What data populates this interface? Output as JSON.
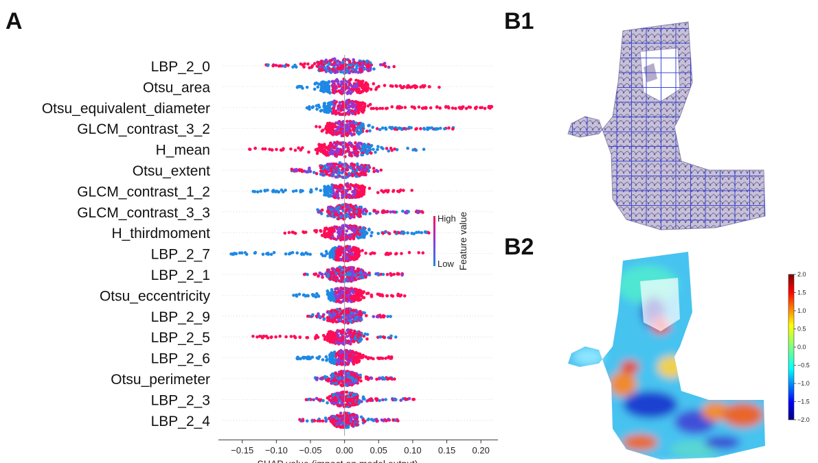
{
  "panels": {
    "a": "A",
    "b1": "B1",
    "b2": "B2"
  },
  "chart_data": [
    {
      "type": "scatter",
      "subtype": "shap-beeswarm",
      "xlabel": "SHAP value (impact on model output)",
      "xlim": [
        -0.185,
        0.225
      ],
      "xticks": [
        -0.15,
        -0.1,
        -0.05,
        0.0,
        0.05,
        0.1,
        0.15,
        0.2
      ],
      "xtick_labels": [
        "−0.15",
        "−0.10",
        "−0.05",
        "0.00",
        "0.05",
        "0.10",
        "0.15",
        "0.20"
      ],
      "grid": false,
      "zero_line": true,
      "colorbar": {
        "label": "Feature value",
        "high": "High",
        "low": "Low",
        "low_color": "#1e88e5",
        "high_color": "#ff0d57"
      },
      "features": [
        {
          "name": "LBP_2_0",
          "min": -0.115,
          "max": 0.073,
          "core": 0.04,
          "low_side": "mixed"
        },
        {
          "name": "Otsu_area",
          "min": -0.072,
          "max": 0.14,
          "core": 0.035,
          "low_side": "negative"
        },
        {
          "name": "Otsu_equivalent_diameter",
          "min": -0.062,
          "max": 0.218,
          "core": 0.03,
          "low_side": "negative"
        },
        {
          "name": "GLCM_contrast_3_2",
          "min": -0.045,
          "max": 0.16,
          "core": 0.028,
          "low_side": "positive"
        },
        {
          "name": "H_mean",
          "min": -0.142,
          "max": 0.117,
          "core": 0.04,
          "low_side": "positive"
        },
        {
          "name": "Otsu_extent",
          "min": -0.078,
          "max": 0.057,
          "core": 0.035,
          "low_side": "mixed"
        },
        {
          "name": "GLCM_contrast_1_2",
          "min": -0.138,
          "max": 0.102,
          "core": 0.03,
          "low_side": "negative"
        },
        {
          "name": "GLCM_contrast_3_3",
          "min": -0.042,
          "max": 0.116,
          "core": 0.025,
          "low_side": "mixed"
        },
        {
          "name": "H_thirdmoment",
          "min": -0.088,
          "max": 0.125,
          "core": 0.03,
          "low_side": "positive"
        },
        {
          "name": "LBP_2_7",
          "min": -0.168,
          "max": 0.125,
          "core": 0.022,
          "low_side": "negative"
        },
        {
          "name": "LBP_2_1",
          "min": -0.06,
          "max": 0.088,
          "core": 0.025,
          "low_side": "mixed"
        },
        {
          "name": "Otsu_eccentricity",
          "min": -0.078,
          "max": 0.09,
          "core": 0.025,
          "low_side": "negative"
        },
        {
          "name": "LBP_2_9",
          "min": -0.055,
          "max": 0.068,
          "core": 0.025,
          "low_side": "mixed"
        },
        {
          "name": "LBP_2_5",
          "min": -0.135,
          "max": 0.076,
          "core": 0.025,
          "low_side": "positive"
        },
        {
          "name": "LBP_2_6",
          "min": -0.072,
          "max": 0.07,
          "core": 0.022,
          "low_side": "negative"
        },
        {
          "name": "Otsu_perimeter",
          "min": -0.045,
          "max": 0.077,
          "core": 0.02,
          "low_side": "mixed"
        },
        {
          "name": "LBP_2_3",
          "min": -0.06,
          "max": 0.102,
          "core": 0.02,
          "low_side": "mixed"
        },
        {
          "name": "LBP_2_4",
          "min": -0.068,
          "max": 0.08,
          "core": 0.02,
          "low_side": "mixed"
        }
      ]
    },
    {
      "type": "heatmap",
      "subtype": "colorbar",
      "vlim": [
        -2.0,
        2.0
      ],
      "ticks": [
        2.0,
        1.5,
        1.0,
        0.5,
        0.0,
        -0.5,
        -1.0,
        -1.5,
        -2.0
      ],
      "tick_labels": [
        "2.0",
        "1.5",
        "1.0",
        "0.5",
        "0.0",
        "−0.5",
        "−1.0",
        "−1.5",
        "−2.0"
      ],
      "colormap": "jet"
    }
  ]
}
